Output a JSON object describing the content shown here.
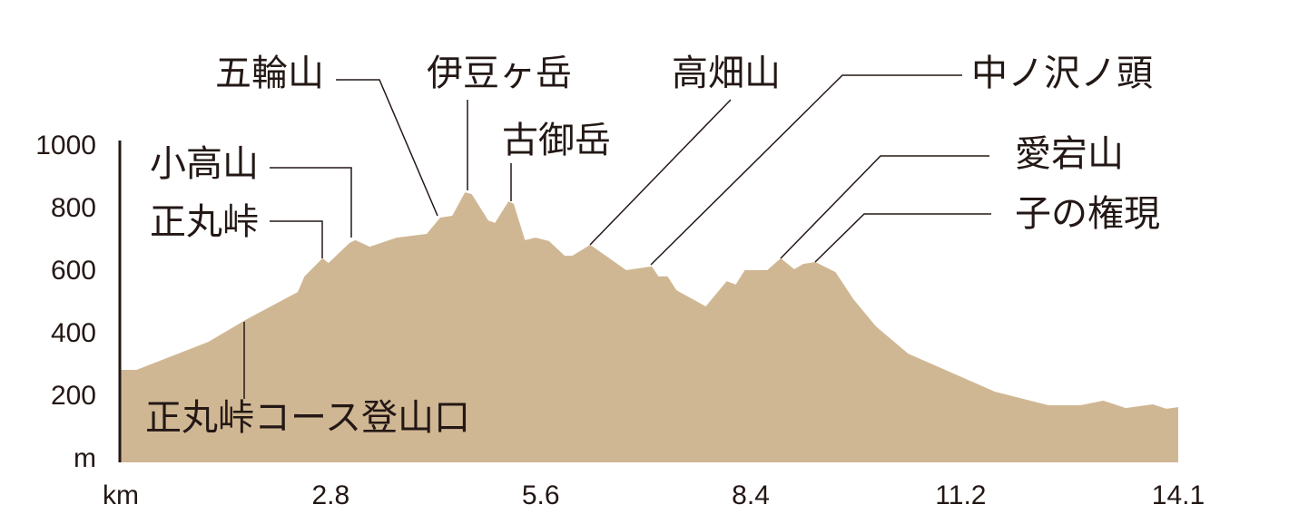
{
  "chart_data": {
    "type": "area",
    "x": [
      0,
      0.21,
      1.17,
      1.68,
      2.36,
      2.45,
      2.69,
      2.77,
      3.05,
      3.13,
      3.32,
      3.68,
      4.08,
      4.26,
      4.42,
      4.59,
      4.68,
      4.9,
      4.99,
      5.17,
      5.24,
      5.39,
      5.53,
      5.71,
      5.92,
      6.02,
      6.26,
      6.74,
      7.08,
      7.17,
      7.29,
      7.41,
      7.8,
      8.08,
      8.2,
      8.32,
      8.62,
      8.8,
      8.98,
      9.1,
      9.26,
      9.53,
      9.77,
      10.07,
      10.5,
      11.1,
      11.65,
      12.37,
      12.8,
      13.1,
      13.4,
      13.76,
      13.94,
      14.1
    ],
    "values": [
      281,
      281,
      371,
      443,
      530,
      580,
      638,
      623,
      687,
      696,
      675,
      704,
      716,
      768,
      774,
      849,
      843,
      759,
      751,
      820,
      812,
      696,
      704,
      693,
      646,
      646,
      681,
      600,
      612,
      580,
      580,
      536,
      484,
      565,
      554,
      600,
      600,
      638,
      603,
      620,
      626,
      594,
      507,
      420,
      333,
      270,
      212,
      168,
      168,
      183,
      159,
      171,
      157,
      162
    ],
    "color": "#d0b794",
    "xlim": [
      0,
      14.1
    ],
    "xticks": [
      {
        "value": 0,
        "label": "km"
      },
      2.8,
      5.6,
      8.4,
      11.2,
      14.1
    ],
    "ylim": [
      0,
      1000
    ],
    "yticks": [
      {
        "value": 0,
        "label": "m"
      },
      200,
      400,
      600,
      800,
      1000
    ],
    "annotations": [
      "五輪山",
      "伊豆ヶ岳",
      "古御岳",
      "高畑山",
      "中ノ沢ノ頭",
      "愛宕山",
      "子の権現",
      "小高山",
      "正丸峠",
      "正丸峠コース登山口"
    ]
  }
}
